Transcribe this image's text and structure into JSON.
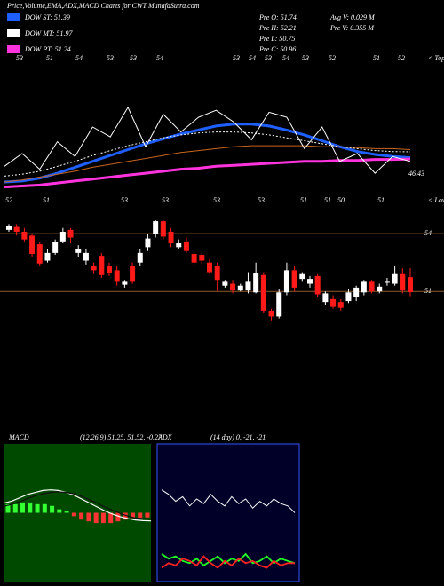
{
  "header": {
    "title": "Price,Volume,EMA,ADX,MACD Charts for CWT MunafaSutra.com",
    "stats": [
      [
        "Pre O: 51.74",
        "Avg V: 0.029 M"
      ],
      [
        "Pre H: 52.21",
        "Pre V: 0.355 M"
      ],
      [
        "Pre L: 50.75"
      ],
      [
        "Pre C: 50.96"
      ]
    ]
  },
  "chart_data": [
    {
      "type": "line",
      "ylim": [
        48,
        62
      ],
      "series": [
        {
          "name": "DOW ST: 51.39",
          "color": "#1f5fff",
          "values": [
            48.9,
            49.0,
            49.3,
            49.8,
            50.4,
            51.0,
            51.6,
            52.2,
            52.8,
            53.3,
            53.8,
            54.2,
            54.6,
            54.8,
            54.8,
            54.6,
            54.2,
            53.7,
            53.1,
            52.5,
            52.0,
            51.7,
            51.5,
            51.39
          ]
        },
        {
          "name": "DOW MT: 51.97",
          "color": "#ffffff",
          "values": [
            49.5,
            49.7,
            50.0,
            50.5,
            51.0,
            51.6,
            52.1,
            52.6,
            53.0,
            53.4,
            53.7,
            53.9,
            54.0,
            54.0,
            53.9,
            53.7,
            53.4,
            53.1,
            52.8,
            52.5,
            52.3,
            52.1,
            52.0,
            51.97
          ]
        },
        {
          "name": "DOW PT: 51.24",
          "color": "#ff33dd",
          "values": [
            48.4,
            48.5,
            48.6,
            48.8,
            49.0,
            49.2,
            49.4,
            49.6,
            49.8,
            50.0,
            50.2,
            50.3,
            50.5,
            50.6,
            50.7,
            50.8,
            50.9,
            51.0,
            51.0,
            51.1,
            51.1,
            51.2,
            51.2,
            51.24
          ]
        },
        {
          "color": "#c8641e",
          "values": [
            48.9,
            49.1,
            49.4,
            49.7,
            50.0,
            50.4,
            50.7,
            51.0,
            51.3,
            51.6,
            51.9,
            52.1,
            52.3,
            52.5,
            52.6,
            52.6,
            52.6,
            52.6,
            52.5,
            52.5,
            52.4,
            52.3,
            52.3,
            52.2
          ]
        },
        {
          "color": "#ffffff",
          "values": [
            50.5,
            51.8,
            50.2,
            53.0,
            51.5,
            54.5,
            53.5,
            56.5,
            52.5,
            55.8,
            54.0,
            55.5,
            56.2,
            55.0,
            53.2,
            56.0,
            55.5,
            52.3,
            54.5,
            51.0,
            51.8,
            49.8,
            51.5,
            51.0
          ]
        }
      ],
      "tops_label": "< Tops",
      "tops": [
        53,
        51,
        54,
        53,
        53,
        54,
        53,
        54,
        53,
        54,
        53,
        52,
        51,
        52
      ],
      "lows_label": "< Lows",
      "lows": [
        52,
        51,
        53,
        53,
        53,
        53,
        51,
        51,
        50,
        51
      ],
      "min_label": 46.43
    },
    {
      "type": "candlestick",
      "ylim": [
        44,
        55.3
      ],
      "yticks": [
        51,
        54
      ],
      "up_color": "#ffffff",
      "down_color": "#ff1a1a",
      "grid_color": "#8a5a2a",
      "open": [
        54.2,
        54.35,
        54.1,
        53.9,
        53.45,
        52.6,
        53.0,
        53.6,
        54.2,
        53.0,
        52.6,
        52.3,
        52.85,
        52.3,
        52.1,
        51.35,
        52.3,
        52.5,
        53.3,
        54.0,
        54.65,
        54.1,
        53.3,
        53.6,
        52.95,
        52.9,
        52.5,
        52.3,
        51.3,
        51.4,
        51.05,
        51.05,
        50.95,
        51.85,
        50.0,
        49.7,
        50.95,
        52.1,
        51.65,
        51.4,
        51.8,
        50.45,
        50.6,
        50.45,
        50.5,
        50.7,
        50.95,
        51.5,
        51.0,
        51.45,
        51.4,
        51.9,
        51.74
      ],
      "high": [
        54.5,
        54.5,
        54.3,
        54.0,
        53.6,
        53.2,
        53.7,
        54.3,
        54.3,
        53.4,
        53.2,
        52.5,
        53.0,
        52.5,
        52.3,
        51.6,
        52.5,
        53.2,
        54.0,
        54.7,
        54.7,
        54.3,
        53.7,
        53.8,
        53.1,
        53.0,
        52.7,
        52.5,
        51.6,
        51.6,
        51.4,
        52.0,
        52.5,
        52.0,
        50.1,
        51.1,
        52.5,
        52.3,
        52.0,
        51.8,
        51.9,
        51.0,
        50.8,
        50.6,
        51.1,
        51.3,
        51.6,
        51.6,
        51.4,
        51.7,
        52.3,
        52.2,
        52.21
      ],
      "low": [
        54.1,
        53.9,
        53.6,
        52.8,
        52.3,
        52.5,
        52.9,
        53.5,
        53.5,
        52.8,
        52.4,
        51.9,
        51.7,
        51.8,
        51.3,
        51.2,
        51.4,
        52.3,
        53.1,
        53.8,
        53.7,
        53.3,
        53.2,
        53.0,
        52.3,
        52.4,
        51.9,
        51.0,
        51.2,
        50.9,
        51.0,
        50.9,
        50.9,
        49.9,
        49.5,
        49.6,
        50.8,
        51.0,
        51.5,
        51.2,
        50.7,
        50.3,
        50.1,
        50.0,
        50.4,
        50.5,
        50.8,
        50.9,
        50.9,
        51.3,
        51.3,
        50.9,
        50.75
      ],
      "close": [
        54.4,
        54.1,
        53.7,
        52.95,
        52.45,
        53.0,
        53.55,
        54.1,
        53.8,
        53.2,
        53.0,
        52.1,
        51.85,
        51.95,
        51.5,
        51.5,
        51.5,
        53.0,
        53.75,
        54.65,
        53.85,
        53.5,
        53.5,
        53.1,
        52.5,
        52.6,
        52.0,
        51.6,
        51.5,
        51.05,
        51.3,
        51.5,
        51.95,
        50.0,
        49.7,
        50.95,
        52.1,
        51.2,
        51.9,
        51.65,
        50.85,
        50.9,
        50.2,
        50.15,
        50.95,
        51.2,
        51.5,
        51.0,
        51.25,
        51.5,
        51.9,
        51.05,
        50.96
      ]
    },
    {
      "type": "macd",
      "title": "MACD",
      "subtitle": "(12,26,9) 51.25, 51.52, -0.27",
      "background": "#004a00",
      "ylim": [
        42,
        63
      ],
      "y2lim": [
        -4,
        4
      ],
      "positive_color": "#33ff33",
      "negative_color": "#ff3333",
      "series": [
        {
          "color": "#ffffff",
          "values": [
            54.0,
            54.3,
            54.8,
            55.3,
            55.6,
            55.9,
            56.0,
            55.9,
            55.6,
            55.2,
            54.6,
            54.0,
            53.4,
            52.8,
            52.3,
            51.9,
            51.6,
            51.4,
            51.3,
            51.25
          ]
        },
        {
          "color": "#111111",
          "values": [
            53.5,
            53.8,
            54.2,
            54.7,
            55.1,
            55.4,
            55.6,
            55.7,
            55.6,
            55.4,
            55.0,
            54.5,
            54.0,
            53.4,
            52.9,
            52.4,
            52.0,
            51.7,
            51.6,
            51.52
          ]
        }
      ],
      "histogram": [
        0.5,
        0.5,
        0.6,
        0.6,
        0.5,
        0.5,
        0.4,
        0.2,
        0.1,
        -0.2,
        -0.4,
        -0.5,
        -0.6,
        -0.6,
        -0.6,
        -0.5,
        -0.4,
        -0.3,
        -0.3,
        -0.27
      ]
    },
    {
      "type": "adx",
      "title": "ADX",
      "subtitle": "(14 day) 0, -21, -21",
      "background": "#000028",
      "border": "#3355ff",
      "ylim": [
        0,
        60
      ],
      "series": [
        {
          "color": "#ffffff",
          "values": [
            40,
            38,
            35,
            37,
            33,
            36,
            34,
            38,
            35,
            33,
            37,
            34,
            36,
            32,
            35,
            33,
            36,
            34,
            33,
            30
          ]
        },
        {
          "color": "#22ff22",
          "values": [
            12,
            10,
            11,
            9,
            8,
            10,
            7,
            9,
            11,
            8,
            10,
            9,
            12,
            8,
            9,
            11,
            8,
            10,
            9,
            8
          ]
        },
        {
          "color": "#ff2222",
          "values": [
            6,
            8,
            7,
            10,
            9,
            7,
            11,
            8,
            6,
            9,
            7,
            10,
            8,
            9,
            7,
            6,
            9,
            7,
            8,
            8
          ]
        }
      ]
    }
  ]
}
